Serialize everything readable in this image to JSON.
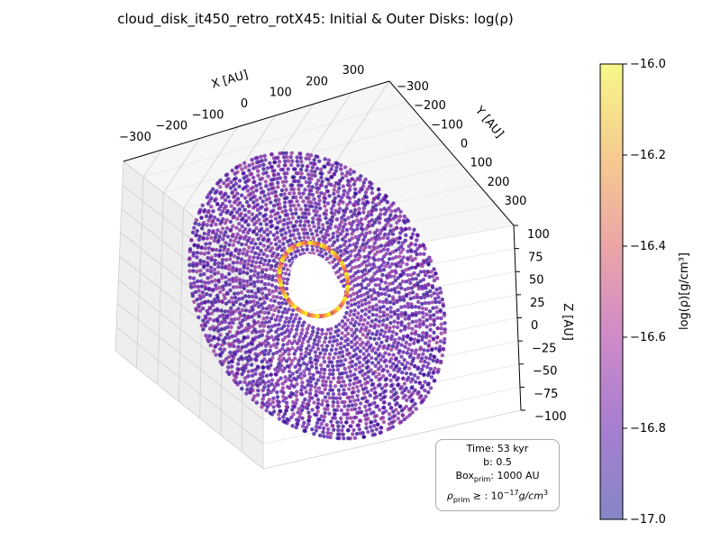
{
  "chart_data": {
    "type": "scatter",
    "projection": "3d",
    "title": "cloud_disk_it450_retro_rotX45: Initial & Outer Disks: log(ρ)",
    "xlabel": "X [AU]",
    "ylabel": "Y [AU]",
    "zlabel": "Z [AU]",
    "x_ticks": [
      "−300",
      "−200",
      "−100",
      "0",
      "100",
      "200",
      "300"
    ],
    "y_ticks": [
      "−300",
      "−200",
      "−100",
      "0",
      "100",
      "200",
      "300"
    ],
    "z_ticks": [
      "100",
      "75",
      "50",
      "25",
      "0",
      "−25",
      "−50",
      "−75",
      "−100"
    ],
    "xlim": [
      -350,
      350
    ],
    "ylim": [
      -350,
      350
    ],
    "zlim": [
      -100,
      100
    ],
    "grid": true,
    "colormap": "plasma",
    "colorbar": {
      "label": "log(ρ)[g/cm³]",
      "min": -17.0,
      "max": -16.0,
      "ticks": [
        "−16.0",
        "−16.2",
        "−16.4",
        "−16.6",
        "−16.8",
        "−17.0"
      ]
    },
    "disk": {
      "inner_radius_au": 60,
      "outer_radius_au": 250,
      "tilt_deg": 45,
      "dominant_log_rho": -16.9
    }
  },
  "info": {
    "time_label": "Time: 53 kyr",
    "b_label": "b: 0.5",
    "box_prefix": "Box",
    "box_sub": "prim",
    "box_value": ": 1000 AU",
    "rho_prefix": "ρ",
    "rho_sub": "prim",
    "rho_mid": " ≥ : 10",
    "rho_exp": "−17",
    "rho_unit": "g/cm",
    "rho_unit_exp": "3"
  },
  "colors": {
    "disk_low": "#3b0a9c",
    "disk_mid": "#7a1fa0",
    "disk_high": "#f0f921",
    "pane": "#f2f2f2",
    "grid": "#cccccc"
  }
}
